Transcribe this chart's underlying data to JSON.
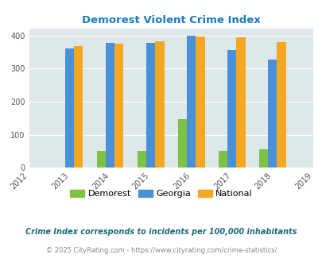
{
  "title": "Demorest Violent Crime Index",
  "years": [
    2012,
    2013,
    2014,
    2015,
    2016,
    2017,
    2018,
    2019
  ],
  "bar_years": [
    2013,
    2014,
    2015,
    2016,
    2017,
    2018
  ],
  "demorest": [
    0,
    50,
    50,
    148,
    50,
    55
  ],
  "georgia": [
    360,
    378,
    378,
    400,
    357,
    328
  ],
  "national": [
    368,
    375,
    383,
    397,
    394,
    381
  ],
  "color_demorest": "#7dc242",
  "color_georgia": "#4a90d9",
  "color_national": "#f5a623",
  "bg_color": "#dde8ea",
  "title_color": "#1a7abf",
  "tick_color": "#555555",
  "footnote1": "Crime Index corresponds to incidents per 100,000 inhabitants",
  "footnote2": "© 2025 CityRating.com - https://www.cityrating.com/crime-statistics/",
  "ylim": [
    0,
    420
  ],
  "yticks": [
    0,
    100,
    200,
    300,
    400
  ],
  "bar_width": 0.22,
  "legend_labels": [
    "Demorest",
    "Georgia",
    "National"
  ]
}
